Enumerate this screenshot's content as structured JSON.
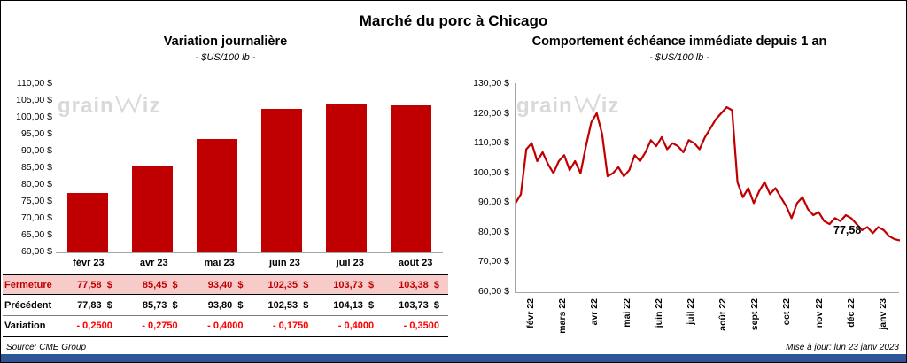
{
  "page": {
    "title": "Marché du porc à Chicago",
    "source": "Source: CME Group",
    "updated": "Mise à jour: lun 23 janv 2023",
    "watermark_text_start": "grain",
    "watermark_text_end": "iz",
    "colors": {
      "accent_red": "#C00000",
      "variation_red": "#FF0000",
      "highlight_pink": "#F8CBCB",
      "footer_blue": "#2F5597",
      "watermark_gray": "#D9D9D9"
    }
  },
  "chart_data": [
    {
      "type": "bar",
      "title": "Variation journalière",
      "subtitle": "- $US/100 lb -",
      "categories": [
        "févr 23",
        "avr 23",
        "mai 23",
        "juin 23",
        "juil 23",
        "août 23"
      ],
      "values": [
        77.58,
        85.45,
        93.4,
        102.35,
        103.73,
        103.38
      ],
      "ylim": [
        60,
        110
      ],
      "ytick_step": 5,
      "y_ticks": [
        "110,00 $",
        "105,00 $",
        "100,00 $",
        "95,00 $",
        "90,00 $",
        "85,00 $",
        "80,00 $",
        "75,00 $",
        "70,00 $",
        "65,00 $",
        "60,00 $"
      ],
      "grid": false,
      "legend": "none",
      "color": "#C00000"
    },
    {
      "type": "line",
      "title": "Comportement échéance immédiate depuis 1 an",
      "subtitle": "- $US/100 lb -",
      "x_labels": [
        "févr 22",
        "mars 22",
        "avr 22",
        "mai 22",
        "juin 22",
        "juil 22",
        "août 22",
        "sept 22",
        "oct 22",
        "nov 22",
        "déc 22",
        "janv 23"
      ],
      "values": [
        90,
        93,
        108,
        110,
        104,
        107,
        103,
        100,
        104,
        106,
        101,
        104,
        100,
        109,
        117,
        120,
        113,
        99,
        100,
        102,
        99,
        101,
        106,
        104,
        107,
        111,
        109,
        112,
        108,
        110,
        109,
        107,
        111,
        110,
        108,
        112,
        115,
        118,
        120,
        122,
        121,
        97,
        92,
        95,
        90,
        94,
        97,
        93,
        95,
        92,
        89,
        85,
        90,
        92,
        88,
        86,
        87,
        84,
        83,
        85,
        84,
        86,
        85,
        83,
        81,
        82,
        80,
        82,
        81,
        79,
        78,
        77.58
      ],
      "ylim": [
        60,
        130
      ],
      "ytick_step": 10,
      "y_ticks": [
        "130,00 $",
        "120,00 $",
        "110,00 $",
        "100,00 $",
        "90,00 $",
        "80,00 $",
        "70,00 $",
        "60,00 $"
      ],
      "grid": false,
      "legend": "none",
      "annotation": {
        "text": "77,58",
        "value": 77.58
      },
      "color": "#C00000"
    }
  ],
  "table": {
    "rows": [
      {
        "label": "Fermeture",
        "style": "highlight",
        "values": [
          "77,58  $",
          "85,45  $",
          "93,40  $",
          "102,35  $",
          "103,73  $",
          "103,38  $"
        ]
      },
      {
        "label": "Précédent",
        "style": "normal",
        "values": [
          "77,83  $",
          "85,73  $",
          "93,80  $",
          "102,53  $",
          "104,13  $",
          "103,73  $"
        ]
      },
      {
        "label": "Variation",
        "style": "negative",
        "values": [
          "- 0,2500",
          "- 0,2750",
          "- 0,4000",
          "- 0,1750",
          "- 0,4000",
          "- 0,3500"
        ]
      }
    ]
  }
}
